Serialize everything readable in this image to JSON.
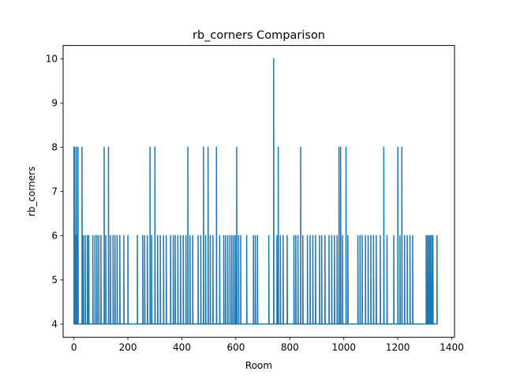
{
  "chart_data": {
    "type": "line",
    "title": "rb_corners Comparison",
    "xlabel": "Room",
    "ylabel": "rb_corners",
    "xlim": [
      -40,
      1410
    ],
    "ylim": [
      3.7,
      10.3
    ],
    "xticks": [
      0,
      200,
      400,
      600,
      800,
      1000,
      1200,
      1400
    ],
    "yticks": [
      4,
      5,
      6,
      7,
      8,
      9,
      10
    ],
    "grid": false,
    "series_color": "#1f77b4",
    "series": [
      {
        "spikes": [
          {
            "x": 0,
            "y": 8
          },
          {
            "x": 3,
            "y": 8
          },
          {
            "x": 6,
            "y": 6
          },
          {
            "x": 9,
            "y": 8
          },
          {
            "x": 12,
            "y": 6
          },
          {
            "x": 15,
            "y": 8
          },
          {
            "x": 30,
            "y": 8
          },
          {
            "x": 35,
            "y": 6
          },
          {
            "x": 42,
            "y": 6
          },
          {
            "x": 50,
            "y": 6
          },
          {
            "x": 55,
            "y": 6
          },
          {
            "x": 70,
            "y": 6
          },
          {
            "x": 78,
            "y": 6
          },
          {
            "x": 85,
            "y": 6
          },
          {
            "x": 92,
            "y": 6
          },
          {
            "x": 100,
            "y": 6
          },
          {
            "x": 112,
            "y": 8
          },
          {
            "x": 118,
            "y": 6
          },
          {
            "x": 128,
            "y": 8
          },
          {
            "x": 135,
            "y": 6
          },
          {
            "x": 145,
            "y": 6
          },
          {
            "x": 152,
            "y": 6
          },
          {
            "x": 160,
            "y": 6
          },
          {
            "x": 170,
            "y": 6
          },
          {
            "x": 185,
            "y": 6
          },
          {
            "x": 200,
            "y": 6
          },
          {
            "x": 235,
            "y": 6
          },
          {
            "x": 255,
            "y": 6
          },
          {
            "x": 262,
            "y": 6
          },
          {
            "x": 272,
            "y": 6
          },
          {
            "x": 282,
            "y": 8
          },
          {
            "x": 288,
            "y": 6
          },
          {
            "x": 300,
            "y": 8
          },
          {
            "x": 310,
            "y": 6
          },
          {
            "x": 320,
            "y": 6
          },
          {
            "x": 332,
            "y": 6
          },
          {
            "x": 342,
            "y": 6
          },
          {
            "x": 358,
            "y": 6
          },
          {
            "x": 368,
            "y": 6
          },
          {
            "x": 375,
            "y": 6
          },
          {
            "x": 385,
            "y": 6
          },
          {
            "x": 395,
            "y": 6
          },
          {
            "x": 405,
            "y": 6
          },
          {
            "x": 415,
            "y": 6
          },
          {
            "x": 422,
            "y": 8
          },
          {
            "x": 430,
            "y": 6
          },
          {
            "x": 440,
            "y": 6
          },
          {
            "x": 460,
            "y": 6
          },
          {
            "x": 470,
            "y": 6
          },
          {
            "x": 480,
            "y": 8
          },
          {
            "x": 488,
            "y": 6
          },
          {
            "x": 497,
            "y": 8
          },
          {
            "x": 505,
            "y": 6
          },
          {
            "x": 515,
            "y": 6
          },
          {
            "x": 528,
            "y": 8
          },
          {
            "x": 540,
            "y": 6
          },
          {
            "x": 555,
            "y": 6
          },
          {
            "x": 562,
            "y": 6
          },
          {
            "x": 570,
            "y": 6
          },
          {
            "x": 578,
            "y": 6
          },
          {
            "x": 585,
            "y": 6
          },
          {
            "x": 592,
            "y": 6
          },
          {
            "x": 598,
            "y": 6
          },
          {
            "x": 603,
            "y": 8
          },
          {
            "x": 610,
            "y": 6
          },
          {
            "x": 618,
            "y": 6
          },
          {
            "x": 640,
            "y": 6
          },
          {
            "x": 665,
            "y": 6
          },
          {
            "x": 672,
            "y": 6
          },
          {
            "x": 680,
            "y": 6
          },
          {
            "x": 722,
            "y": 6
          },
          {
            "x": 740,
            "y": 10
          },
          {
            "x": 752,
            "y": 6
          },
          {
            "x": 757,
            "y": 8
          },
          {
            "x": 765,
            "y": 6
          },
          {
            "x": 775,
            "y": 6
          },
          {
            "x": 790,
            "y": 6
          },
          {
            "x": 815,
            "y": 6
          },
          {
            "x": 822,
            "y": 6
          },
          {
            "x": 830,
            "y": 6
          },
          {
            "x": 840,
            "y": 8
          },
          {
            "x": 848,
            "y": 6
          },
          {
            "x": 865,
            "y": 6
          },
          {
            "x": 875,
            "y": 6
          },
          {
            "x": 885,
            "y": 6
          },
          {
            "x": 895,
            "y": 6
          },
          {
            "x": 910,
            "y": 6
          },
          {
            "x": 918,
            "y": 6
          },
          {
            "x": 930,
            "y": 6
          },
          {
            "x": 945,
            "y": 6
          },
          {
            "x": 955,
            "y": 6
          },
          {
            "x": 965,
            "y": 6
          },
          {
            "x": 975,
            "y": 6
          },
          {
            "x": 982,
            "y": 8
          },
          {
            "x": 988,
            "y": 8
          },
          {
            "x": 995,
            "y": 6
          },
          {
            "x": 1008,
            "y": 8
          },
          {
            "x": 1015,
            "y": 6
          },
          {
            "x": 1052,
            "y": 6
          },
          {
            "x": 1060,
            "y": 6
          },
          {
            "x": 1068,
            "y": 6
          },
          {
            "x": 1080,
            "y": 6
          },
          {
            "x": 1090,
            "y": 6
          },
          {
            "x": 1100,
            "y": 6
          },
          {
            "x": 1110,
            "y": 6
          },
          {
            "x": 1120,
            "y": 6
          },
          {
            "x": 1135,
            "y": 6
          },
          {
            "x": 1148,
            "y": 8
          },
          {
            "x": 1160,
            "y": 6
          },
          {
            "x": 1185,
            "y": 6
          },
          {
            "x": 1200,
            "y": 8
          },
          {
            "x": 1208,
            "y": 6
          },
          {
            "x": 1215,
            "y": 8
          },
          {
            "x": 1225,
            "y": 6
          },
          {
            "x": 1235,
            "y": 6
          },
          {
            "x": 1245,
            "y": 6
          },
          {
            "x": 1255,
            "y": 6
          },
          {
            "x": 1305,
            "y": 6
          },
          {
            "x": 1310,
            "y": 6
          },
          {
            "x": 1315,
            "y": 6
          },
          {
            "x": 1320,
            "y": 6
          },
          {
            "x": 1325,
            "y": 6
          },
          {
            "x": 1330,
            "y": 6
          },
          {
            "x": 1345,
            "y": 6
          }
        ],
        "baseline": 4,
        "x_end": 1345
      }
    ]
  }
}
